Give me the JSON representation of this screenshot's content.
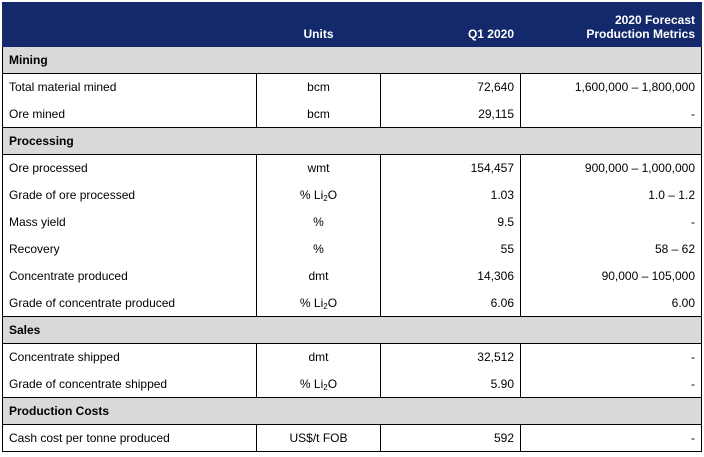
{
  "header": {
    "units": "Units",
    "q1": "Q1 2020",
    "forecast_line1": "2020 Forecast",
    "forecast_line2": "Production Metrics"
  },
  "sections": [
    {
      "title": "Mining",
      "rows": [
        {
          "label": "Total material mined",
          "units": "bcm",
          "q1": "72,640",
          "forecast": "1,600,000 – 1,800,000"
        },
        {
          "label": "Ore mined",
          "units": "bcm",
          "q1": "29,115",
          "forecast": "-"
        }
      ]
    },
    {
      "title": "Processing",
      "rows": [
        {
          "label": "Ore processed",
          "units": "wmt",
          "q1": "154,457",
          "forecast": "900,000 – 1,000,000"
        },
        {
          "label": "Grade of ore processed",
          "units": "% Li2O",
          "q1": "1.03",
          "forecast": "1.0 – 1.2"
        },
        {
          "label": "Mass yield",
          "units": "%",
          "q1": "9.5",
          "forecast": "-"
        },
        {
          "label": "Recovery",
          "units": "%",
          "q1": "55",
          "forecast": "58 – 62"
        },
        {
          "label": "Concentrate produced",
          "units": "dmt",
          "q1": "14,306",
          "forecast": "90,000 – 105,000"
        },
        {
          "label": "Grade of concentrate produced",
          "units": "% Li2O",
          "q1": "6.06",
          "forecast": "6.00"
        }
      ]
    },
    {
      "title": "Sales",
      "rows": [
        {
          "label": "Concentrate shipped",
          "units": "dmt",
          "q1": "32,512",
          "forecast": "-"
        },
        {
          "label": "Grade of concentrate shipped",
          "units": "% Li2O",
          "q1": "5.90",
          "forecast": "-"
        }
      ]
    },
    {
      "title": "Production Costs",
      "rows": [
        {
          "label": "Cash cost per tonne produced",
          "units": "US$/t FOB",
          "q1": "592",
          "forecast": "-"
        }
      ]
    }
  ]
}
